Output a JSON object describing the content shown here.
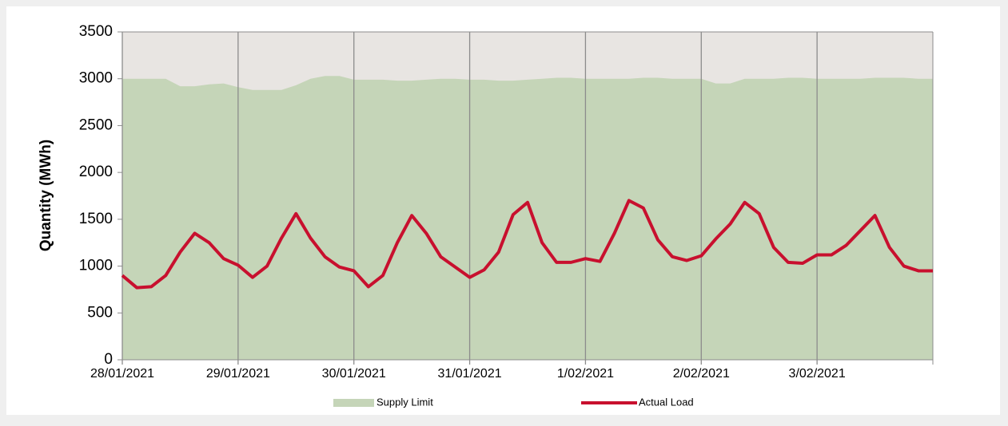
{
  "chart_data": {
    "type": "area-line",
    "ylabel": "Quantity (MWh)",
    "x": [
      0,
      0.125,
      0.25,
      0.375,
      0.5,
      0.625,
      0.75,
      0.875,
      1,
      1.125,
      1.25,
      1.375,
      1.5,
      1.625,
      1.75,
      1.875,
      2,
      2.125,
      2.25,
      2.375,
      2.5,
      2.625,
      2.75,
      2.875,
      3,
      3.125,
      3.25,
      3.375,
      3.5,
      3.625,
      3.75,
      3.875,
      4,
      4.125,
      4.25,
      4.375,
      4.5,
      4.625,
      4.75,
      4.875,
      5,
      5.125,
      5.25,
      5.375,
      5.5,
      5.625,
      5.75,
      5.875,
      6,
      6.125,
      6.25,
      6.375,
      6.5,
      6.625,
      6.75,
      6.875,
      7
    ],
    "series": [
      {
        "name": "Supply Limit",
        "color": "#c5d5b8",
        "kind": "area",
        "values": [
          3000,
          3000,
          3000,
          3000,
          2920,
          2920,
          2940,
          2950,
          2910,
          2880,
          2880,
          2880,
          2930,
          3000,
          3030,
          3030,
          2990,
          2990,
          2990,
          2980,
          2980,
          2990,
          3000,
          3000,
          2990,
          2990,
          2980,
          2980,
          2990,
          3000,
          3010,
          3010,
          3000,
          3000,
          3000,
          3000,
          3010,
          3010,
          3000,
          3000,
          3000,
          2950,
          2950,
          3000,
          3000,
          3000,
          3010,
          3010,
          3000,
          3000,
          3000,
          3000,
          3010,
          3010,
          3010,
          3000,
          3000
        ]
      },
      {
        "name": "Actual Load",
        "color": "#c8102e",
        "kind": "line",
        "values": [
          900,
          770,
          780,
          900,
          1150,
          1350,
          1250,
          1080,
          1010,
          880,
          1000,
          1300,
          1560,
          1300,
          1100,
          990,
          950,
          780,
          900,
          1250,
          1540,
          1350,
          1100,
          990,
          880,
          960,
          1150,
          1550,
          1680,
          1250,
          1040,
          1040,
          1080,
          1050,
          1350,
          1700,
          1620,
          1280,
          1100,
          1060,
          1110,
          1290,
          1450,
          1680,
          1560,
          1200,
          1040,
          1030,
          1120,
          1120,
          1220,
          1380,
          1540,
          1200,
          1000,
          950,
          950
        ]
      }
    ],
    "xlim": [
      0,
      7
    ],
    "xticks": [
      {
        "value": 0,
        "label": "28/01/2021"
      },
      {
        "value": 1,
        "label": "29/01/2021"
      },
      {
        "value": 2,
        "label": "30/01/2021"
      },
      {
        "value": 3,
        "label": "31/01/2021"
      },
      {
        "value": 4,
        "label": "1/02/2021"
      },
      {
        "value": 5,
        "label": "2/02/2021"
      },
      {
        "value": 6,
        "label": "3/02/2021"
      }
    ],
    "ylim": [
      0,
      3500
    ],
    "yticks": [
      0,
      500,
      1000,
      1500,
      2000,
      2500,
      3000,
      3500
    ],
    "plot_background": "#e8e5e2",
    "grid": "vertical"
  }
}
